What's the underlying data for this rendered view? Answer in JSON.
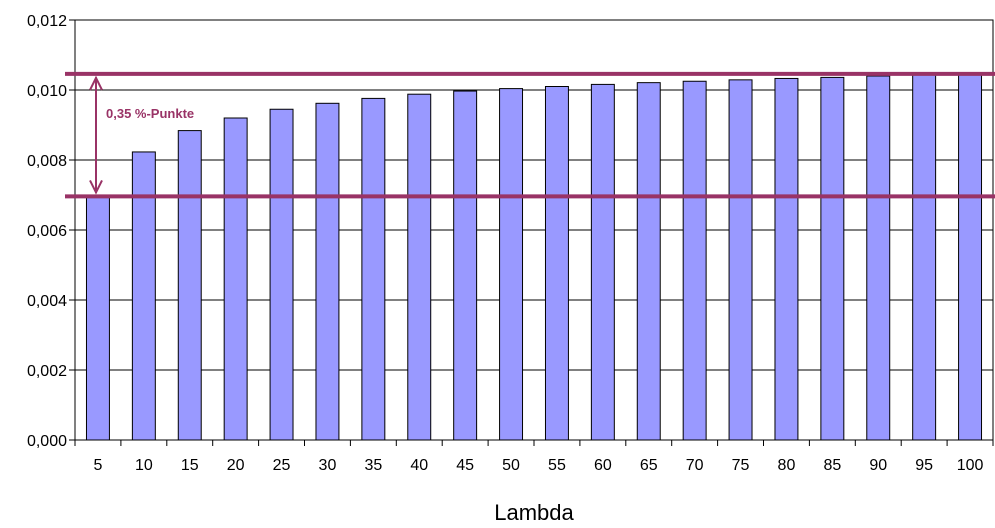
{
  "chart_data": {
    "type": "bar",
    "title": "",
    "xlabel": "Lambda",
    "ylabel": "",
    "categories": [
      "5",
      "10",
      "15",
      "20",
      "25",
      "30",
      "35",
      "40",
      "45",
      "50",
      "55",
      "60",
      "65",
      "70",
      "75",
      "80",
      "85",
      "90",
      "95",
      "100"
    ],
    "values": [
      0.00696,
      0.00823,
      0.00884,
      0.0092,
      0.00945,
      0.00962,
      0.00976,
      0.00988,
      0.00997,
      0.01004,
      0.0101,
      0.01016,
      0.01021,
      0.01025,
      0.01029,
      0.01033,
      0.01036,
      0.0104,
      0.01043,
      0.01046
    ],
    "ylim": [
      0,
      0.012
    ],
    "yticks": [
      0,
      0.002,
      0.004,
      0.006,
      0.008,
      0.01,
      0.012
    ],
    "ytick_labels": [
      "0,000",
      "0,002",
      "0,004",
      "0,006",
      "0,008",
      "0,010",
      "0,012"
    ],
    "grid": true,
    "legend": "none",
    "bar_color": "#9999ff",
    "reference_lines": [
      0.00696,
      0.01046
    ],
    "reference_line_color": "#993366",
    "annotation": {
      "text": "0,35 %-Punkte",
      "from": 0.00696,
      "to": 0.01046
    }
  }
}
